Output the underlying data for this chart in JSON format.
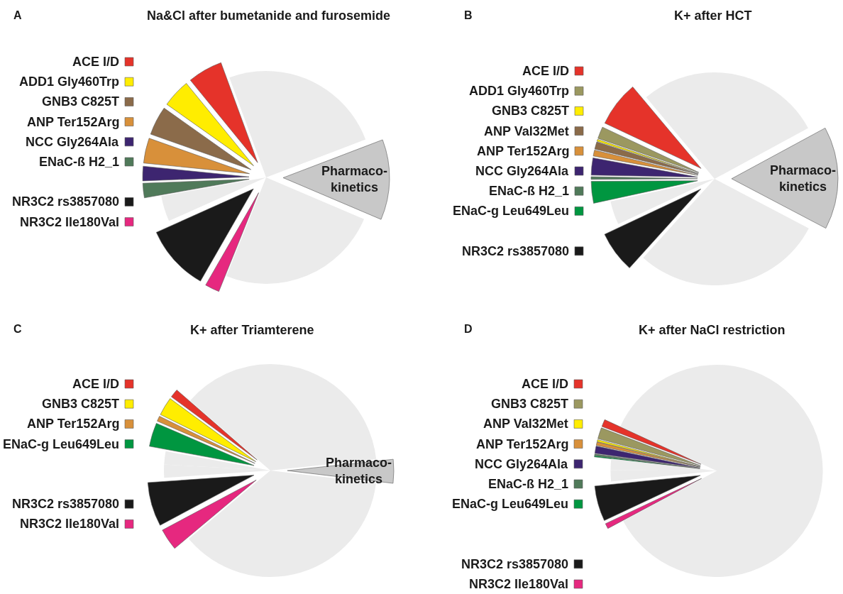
{
  "chart_data": [
    {
      "type": "pie",
      "title": "Na&Cl after bumetanide and furosemide",
      "annotations": [
        "A"
      ],
      "legend": "left",
      "categories": [
        null,
        "ACE I/D",
        "ADD1 Gly460Trp",
        "GNB3 C825T",
        "ANP Ter152Arg",
        "NCC Gly264Ala",
        "ENaC-ß H2_1",
        null,
        "NR3C2 rs3857080",
        "NR3C2 Ile180Val",
        null,
        "Pharmaco-kinetics",
        null
      ],
      "values": [
        5.6,
        5.3,
        4.3,
        4.4,
        3.8,
        2.2,
        2.2,
        3.9,
        10.0,
        2.2,
        24.7,
        12.2,
        19.2
      ],
      "colors": [
        "#ebebeb",
        "#e5332a",
        "#ffed00",
        "#8b6b4a",
        "#d8903a",
        "#3d2570",
        "#507a5a",
        "#ebebeb",
        "#1a1a1a",
        "#e6287f",
        "#ebebeb",
        "#c8c8c8",
        "#ebebeb"
      ]
    },
    {
      "type": "pie",
      "title": "K+ after HCT",
      "annotations": [
        "B"
      ],
      "legend": "left",
      "categories": [
        null,
        "ACE I/D",
        "ADD1 Gly460Trp",
        "GNB3 C825T",
        "ANP Val32Met",
        "ANP Ter152Arg",
        "NCC Gly264Ala",
        "ENaC-ß H2_1",
        "ENaC-g Leu649Leu",
        null,
        "NR3C2 rs3857080",
        null,
        "Pharmaco-kinetics",
        null
      ],
      "values": [
        11.1,
        6.9,
        1.8,
        0.3,
        1.1,
        0.9,
        2.6,
        0.4,
        3.3,
        3.6,
        6.3,
        29.0,
        15.6,
        17.1
      ],
      "colors": [
        "#ebebeb",
        "#e5332a",
        "#9b9860",
        "#ffed00",
        "#8b6b4a",
        "#d8903a",
        "#3d2570",
        "#507a5a",
        "#009640",
        "#ebebeb",
        "#1a1a1a",
        "#ebebeb",
        "#c8c8c8",
        "#ebebeb"
      ]
    },
    {
      "type": "pie",
      "title": "K+ after Triamterene",
      "annotations": [
        "C"
      ],
      "legend": "left",
      "categories": [
        null,
        "ACE I/D",
        "GNB3 C825T",
        "ANP Ter152Arg",
        "ENaC-g Leu649Leu",
        null,
        null,
        "NR3C2 rs3857080",
        "NR3C2 Ile180Val",
        null,
        "Pharmaco-kinetics",
        null
      ],
      "values": [
        13.6,
        1.3,
        2.8,
        0.8,
        3.6,
        2.0,
        2.0,
        6.7,
        3.3,
        37.0,
        3.6,
        23.3
      ],
      "colors": [
        "#ebebeb",
        "#e5332a",
        "#ffed00",
        "#d8903a",
        "#009640",
        "#ebebeb",
        "#ebebeb",
        "#1a1a1a",
        "#e6287f",
        "#ebebeb",
        "#c8c8c8",
        "#ebebeb"
      ]
    },
    {
      "type": "pie",
      "title": "K+ after NaCl restriction",
      "annotations": [
        "D"
      ],
      "legend": "left",
      "categories": [
        null,
        "ACE I/D",
        "GNB3 C825T",
        "ANP Val32Met",
        "ANP Ter152Arg",
        "NCC Gly264Ala",
        "ENaC-ß H2_1",
        "ENaC-g Leu649Leu",
        null,
        null,
        "NR3C2 rs3857080",
        "NR3C2 Ile180Val",
        null
      ],
      "values": [
        18.1,
        1.1,
        1.7,
        0.3,
        0.5,
        1.1,
        0.2,
        0.2,
        1.7,
        1.7,
        5.4,
        0.8,
        67.2
      ],
      "colors": [
        "#ebebeb",
        "#e5332a",
        "#9b9860",
        "#ffed00",
        "#d8903a",
        "#3d2570",
        "#507a5a",
        "#009640",
        "#ebebeb",
        "#ebebeb",
        "#1a1a1a",
        "#e6287f",
        "#ebebeb"
      ]
    }
  ]
}
